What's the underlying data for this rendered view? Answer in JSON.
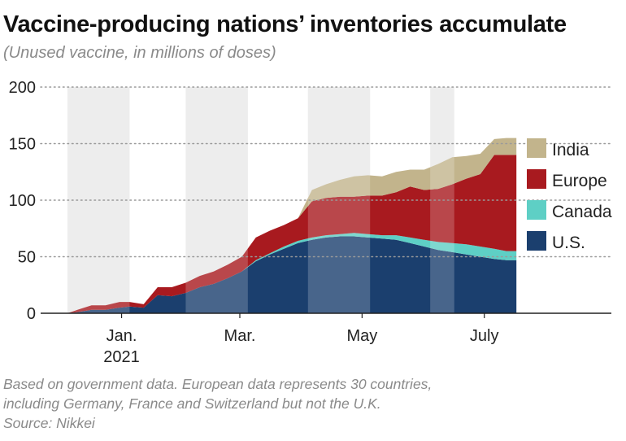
{
  "title": "Vaccine-producing nations’ inventories accumulate",
  "subtitle": "(Unused vaccine, in millions of doses)",
  "notes": [
    "Based on government data. European data represents 30 countries,",
    "including Germany, France and Switzerland but not the U.K.",
    "Source: Nikkei"
  ],
  "chart_data": {
    "type": "area",
    "stacked": true,
    "title": "Vaccine-producing nations’ inventories accumulate",
    "subtitle": "(Unused vaccine, in millions of doses)",
    "ylim": [
      0,
      200
    ],
    "y_ticks": [
      0,
      50,
      100,
      150,
      200
    ],
    "grid": "horizontal-dotted",
    "legend_position": "right",
    "x_labels": [
      {
        "at": 27,
        "lines": [
          "Jan.",
          "2021"
        ]
      },
      {
        "at": 86,
        "lines": [
          "Mar."
        ]
      },
      {
        "at": 147,
        "lines": [
          "May"
        ]
      },
      {
        "at": 208,
        "lines": [
          "July"
        ]
      }
    ],
    "shaded_bands": [
      [
        0,
        31
      ],
      [
        59,
        90
      ],
      [
        120,
        151
      ],
      [
        181,
        193
      ]
    ],
    "x": [
      0,
      5,
      12,
      19,
      26,
      31,
      38,
      45,
      52,
      59,
      66,
      73,
      80,
      87,
      94,
      101,
      108,
      115,
      122,
      129,
      136,
      143,
      150,
      157,
      164,
      171,
      178,
      185,
      192,
      199,
      206,
      213,
      219,
      224
    ],
    "series": [
      {
        "name": "U.S.",
        "color": "#1b3f6e",
        "values": [
          0,
          1,
          3,
          3,
          5,
          6,
          5,
          16,
          15,
          18,
          23,
          26,
          31,
          37,
          46,
          52,
          57,
          62,
          65,
          67,
          68,
          68,
          67,
          66,
          65,
          62,
          59,
          56,
          54,
          52,
          50,
          48,
          47,
          47
        ]
      },
      {
        "name": "Canada",
        "color": "#5ecfc5",
        "values": [
          0,
          0,
          0,
          0,
          0,
          0,
          0,
          0,
          0,
          0,
          0,
          0,
          0,
          0,
          1,
          1,
          2,
          2,
          2,
          2,
          2,
          3,
          3,
          3,
          4,
          5,
          6,
          7,
          8,
          9,
          9,
          9,
          8,
          8
        ]
      },
      {
        "name": "Europe",
        "color": "#a81a1f",
        "values": [
          0,
          2,
          4,
          4,
          5,
          4,
          3,
          7,
          8,
          9,
          10,
          11,
          12,
          13,
          20,
          20,
          19,
          20,
          32,
          33,
          33,
          32,
          34,
          35,
          38,
          45,
          44,
          47,
          52,
          58,
          64,
          83,
          85,
          85
        ]
      },
      {
        "name": "India",
        "color": "#c2b48c",
        "values": [
          0,
          0,
          0,
          0,
          0,
          0,
          0,
          0,
          0,
          0,
          0,
          0,
          0,
          0,
          0,
          0,
          0,
          0,
          10,
          12,
          15,
          18,
          18,
          17,
          18,
          15,
          18,
          22,
          24,
          20,
          18,
          14,
          15,
          15
        ]
      }
    ]
  }
}
